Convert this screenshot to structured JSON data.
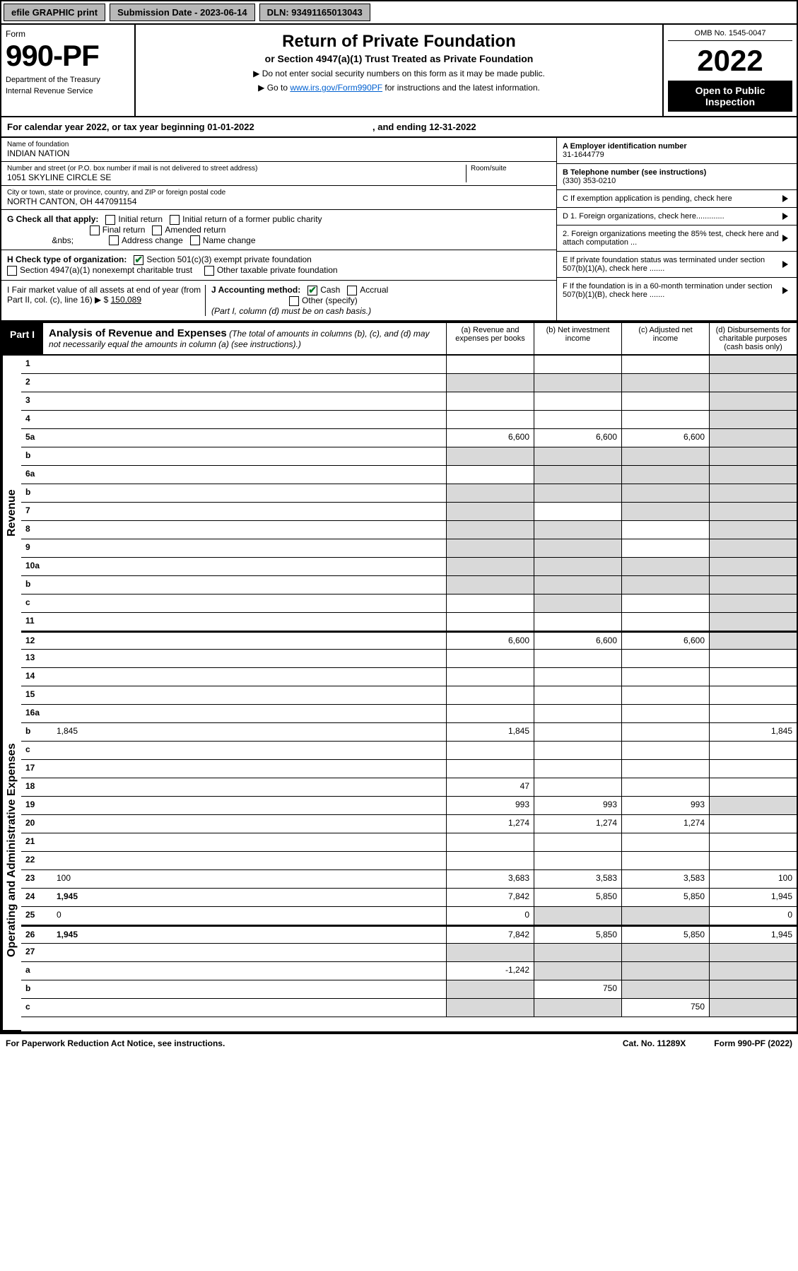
{
  "topbar": {
    "efile": "efile GRAPHIC print",
    "submission": "Submission Date - 2023-06-14",
    "dln": "DLN: 93491165013043"
  },
  "header": {
    "form_label": "Form",
    "form_number": "990-PF",
    "dept1": "Department of the Treasury",
    "dept2": "Internal Revenue Service",
    "title": "Return of Private Foundation",
    "subtitle": "or Section 4947(a)(1) Trust Treated as Private Foundation",
    "instr1": "▶ Do not enter social security numbers on this form as it may be made public.",
    "instr2_pre": "▶ Go to ",
    "instr2_link": "www.irs.gov/Form990PF",
    "instr2_post": " for instructions and the latest information.",
    "omb": "OMB No. 1545-0047",
    "year": "2022",
    "open": "Open to Public Inspection"
  },
  "yearline": {
    "text_pre": "For calendar year 2022, or tax year beginning ",
    "begin": "01-01-2022",
    "text_mid": " , and ending ",
    "end": "12-31-2022"
  },
  "info": {
    "name_label": "Name of foundation",
    "name": "INDIAN NATION",
    "addr_label": "Number and street (or P.O. box number if mail is not delivered to street address)",
    "room_label": "Room/suite",
    "addr": "1051 SKYLINE CIRCLE SE",
    "city_label": "City or town, state or province, country, and ZIP or foreign postal code",
    "city": "NORTH CANTON, OH  447091154",
    "A_label": "A Employer identification number",
    "A_val": "31-1644779",
    "B_label": "B Telephone number (see instructions)",
    "B_val": "(330) 353-0210",
    "C_label": "C If exemption application is pending, check here",
    "D1": "D 1. Foreign organizations, check here.............",
    "D2": "2. Foreign organizations meeting the 85% test, check here and attach computation ...",
    "E": "E  If private foundation status was terminated under section 507(b)(1)(A), check here .......",
    "F": "F  If the foundation is in a 60-month termination under section 507(b)(1)(B), check here .......",
    "G_label": "G Check all that apply:",
    "G_items": [
      "Initial return",
      "Initial return of a former public charity",
      "Final return",
      "Amended return",
      "Address change",
      "Name change"
    ],
    "H_label": "H Check type of organization:",
    "H1": "Section 501(c)(3) exempt private foundation",
    "H2": "Section 4947(a)(1) nonexempt charitable trust",
    "H3": "Other taxable private foundation",
    "I_label": "I Fair market value of all assets at end of year (from Part II, col. (c), line 16) ▶ $",
    "I_val": "150,089",
    "J_label": "J Accounting method:",
    "J_cash": "Cash",
    "J_accrual": "Accrual",
    "J_other": "Other (specify)",
    "J_note": "(Part I, column (d) must be on cash basis.)"
  },
  "part1": {
    "tab": "Part I",
    "title": "Analysis of Revenue and Expenses",
    "title_note": " (The total of amounts in columns (b), (c), and (d) may not necessarily equal the amounts in column (a) (see instructions).)",
    "col_a": "(a) Revenue and expenses per books",
    "col_b": "(b) Net investment income",
    "col_c": "(c) Adjusted net income",
    "col_d": "(d) Disbursements for charitable purposes (cash basis only)"
  },
  "vlabels": {
    "revenue": "Revenue",
    "expenses": "Operating and Administrative Expenses"
  },
  "lines": [
    {
      "n": "1",
      "d": "",
      "a": "",
      "b": "",
      "c": "",
      "grey": [
        "d"
      ]
    },
    {
      "n": "2",
      "d": "",
      "a": "",
      "b": "",
      "c": "",
      "grey": [
        "a",
        "b",
        "c",
        "d"
      ],
      "noborder": true
    },
    {
      "n": "3",
      "d": "",
      "a": "",
      "b": "",
      "c": "",
      "grey": [
        "d"
      ]
    },
    {
      "n": "4",
      "d": "",
      "a": "",
      "b": "",
      "c": "",
      "grey": [
        "d"
      ]
    },
    {
      "n": "5a",
      "d": "",
      "a": "6,600",
      "b": "6,600",
      "c": "6,600",
      "grey": [
        "d"
      ]
    },
    {
      "n": "b",
      "d": "",
      "a": "",
      "b": "",
      "c": "",
      "grey": [
        "a",
        "b",
        "c",
        "d"
      ]
    },
    {
      "n": "6a",
      "d": "",
      "a": "",
      "b": "",
      "c": "",
      "grey": [
        "b",
        "c",
        "d"
      ]
    },
    {
      "n": "b",
      "d": "",
      "a": "",
      "b": "",
      "c": "",
      "grey": [
        "a",
        "b",
        "c",
        "d"
      ]
    },
    {
      "n": "7",
      "d": "",
      "a": "",
      "b": "",
      "c": "",
      "grey": [
        "a",
        "c",
        "d"
      ]
    },
    {
      "n": "8",
      "d": "",
      "a": "",
      "b": "",
      "c": "",
      "grey": [
        "a",
        "b",
        "d"
      ]
    },
    {
      "n": "9",
      "d": "",
      "a": "",
      "b": "",
      "c": "",
      "grey": [
        "a",
        "b",
        "d"
      ]
    },
    {
      "n": "10a",
      "d": "",
      "a": "",
      "b": "",
      "c": "",
      "grey": [
        "a",
        "b",
        "c",
        "d"
      ]
    },
    {
      "n": "b",
      "d": "",
      "a": "",
      "b": "",
      "c": "",
      "grey": [
        "a",
        "b",
        "c",
        "d"
      ]
    },
    {
      "n": "c",
      "d": "",
      "a": "",
      "b": "",
      "c": "",
      "grey": [
        "b",
        "d"
      ]
    },
    {
      "n": "11",
      "d": "",
      "a": "",
      "b": "",
      "c": "",
      "grey": [
        "d"
      ]
    },
    {
      "n": "12",
      "d": "",
      "a": "6,600",
      "b": "6,600",
      "c": "6,600",
      "grey": [
        "d"
      ],
      "bold": true
    },
    {
      "n": "13",
      "d": "",
      "a": "",
      "b": "",
      "c": ""
    },
    {
      "n": "14",
      "d": "",
      "a": "",
      "b": "",
      "c": ""
    },
    {
      "n": "15",
      "d": "",
      "a": "",
      "b": "",
      "c": ""
    },
    {
      "n": "16a",
      "d": "",
      "a": "",
      "b": "",
      "c": ""
    },
    {
      "n": "b",
      "d": "1,845",
      "a": "1,845",
      "b": "",
      "c": ""
    },
    {
      "n": "c",
      "d": "",
      "a": "",
      "b": "",
      "c": ""
    },
    {
      "n": "17",
      "d": "",
      "a": "",
      "b": "",
      "c": ""
    },
    {
      "n": "18",
      "d": "",
      "a": "47",
      "b": "",
      "c": ""
    },
    {
      "n": "19",
      "d": "",
      "a": "993",
      "b": "993",
      "c": "993",
      "grey": [
        "d"
      ]
    },
    {
      "n": "20",
      "d": "",
      "a": "1,274",
      "b": "1,274",
      "c": "1,274"
    },
    {
      "n": "21",
      "d": "",
      "a": "",
      "b": "",
      "c": ""
    },
    {
      "n": "22",
      "d": "",
      "a": "",
      "b": "",
      "c": ""
    },
    {
      "n": "23",
      "d": "100",
      "a": "3,683",
      "b": "3,583",
      "c": "3,583"
    },
    {
      "n": "24",
      "d": "1,945",
      "a": "7,842",
      "b": "5,850",
      "c": "5,850",
      "bold": true
    },
    {
      "n": "25",
      "d": "0",
      "a": "0",
      "b": "",
      "c": "",
      "grey": [
        "b",
        "c"
      ]
    },
    {
      "n": "26",
      "d": "1,945",
      "a": "7,842",
      "b": "5,850",
      "c": "5,850",
      "bold": true
    },
    {
      "n": "27",
      "d": "",
      "a": "",
      "b": "",
      "c": "",
      "grey": [
        "a",
        "b",
        "c",
        "d"
      ]
    },
    {
      "n": "a",
      "d": "",
      "a": "-1,242",
      "b": "",
      "c": "",
      "grey": [
        "b",
        "c",
        "d"
      ],
      "bold": true
    },
    {
      "n": "b",
      "d": "",
      "a": "",
      "b": "750",
      "c": "",
      "grey": [
        "a",
        "c",
        "d"
      ],
      "bold": true
    },
    {
      "n": "c",
      "d": "",
      "a": "",
      "b": "",
      "c": "750",
      "grey": [
        "a",
        "b",
        "d"
      ],
      "bold": true
    }
  ],
  "footer": {
    "left": "For Paperwork Reduction Act Notice, see instructions.",
    "mid": "Cat. No. 11289X",
    "right": "Form 990-PF (2022)"
  },
  "colors": {
    "grey_btn": "#b8b8b8",
    "grey_cell": "#d9d9d9",
    "link": "#0060d0",
    "check_green": "#0a7a2a"
  }
}
